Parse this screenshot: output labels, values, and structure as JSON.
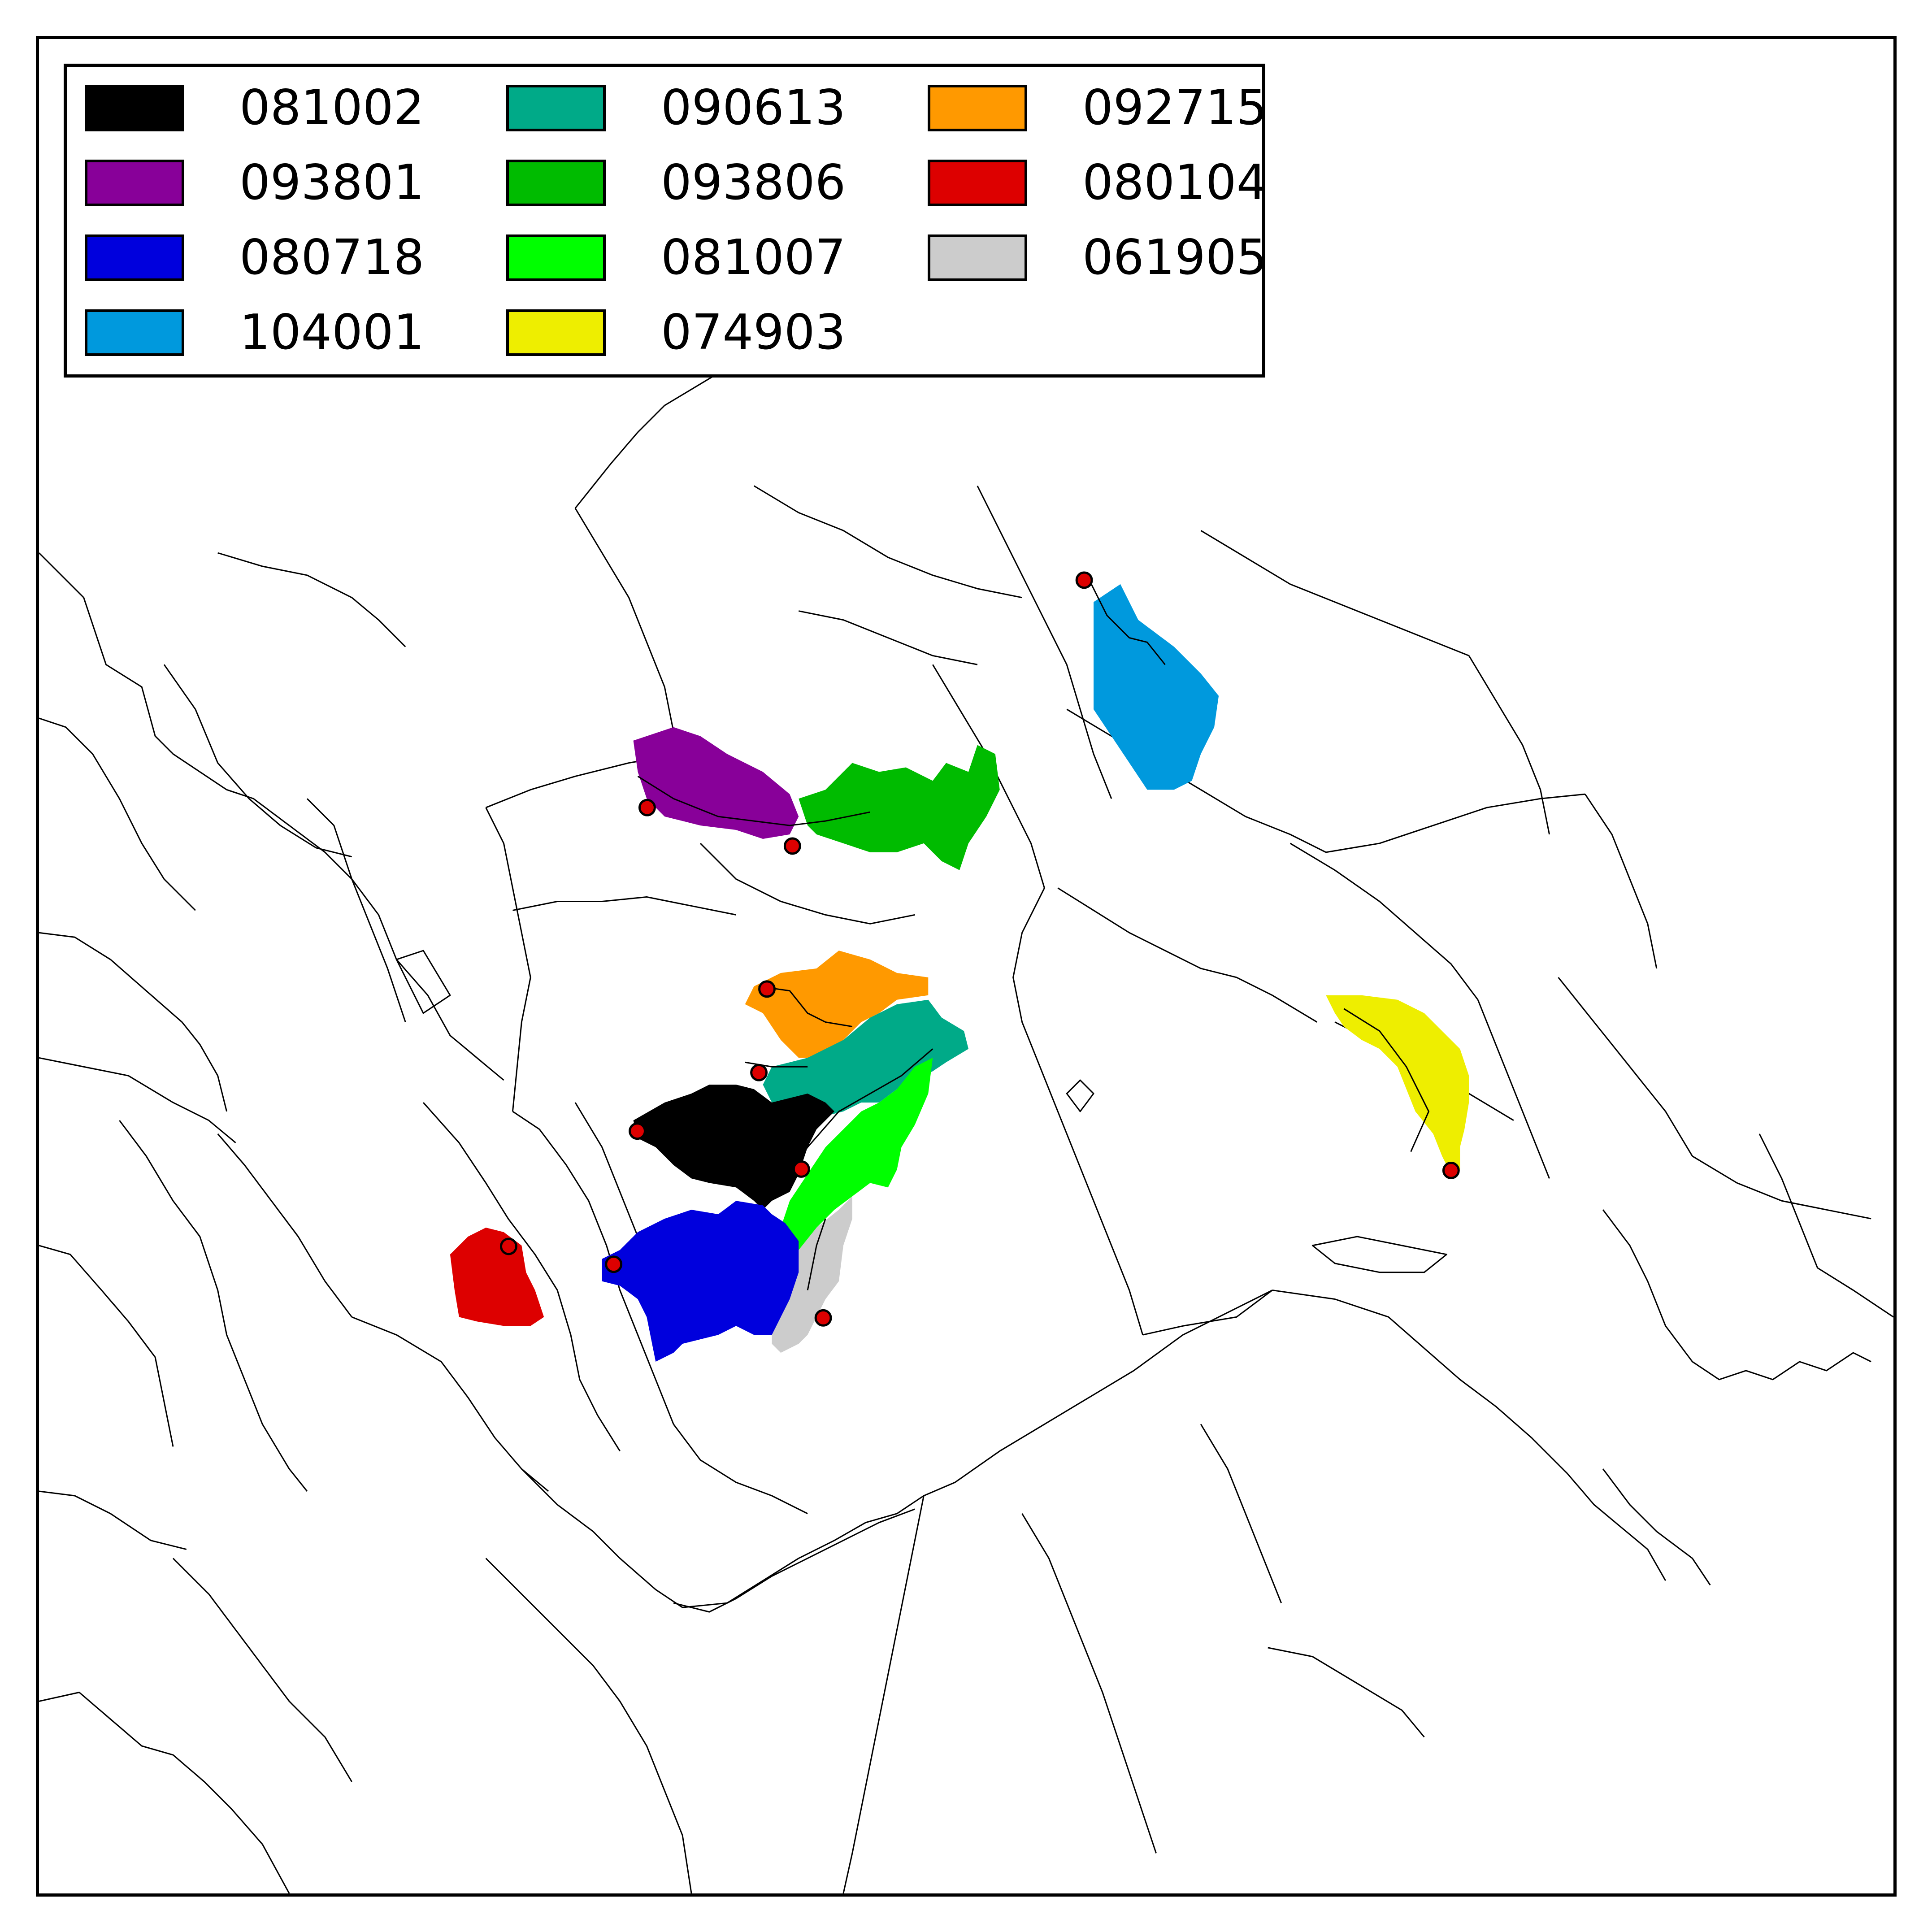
{
  "legend": {
    "items": [
      {
        "code": "081002",
        "color": "#000000"
      },
      {
        "code": "093801",
        "color": "#880099"
      },
      {
        "code": "080718",
        "color": "#0000DD"
      },
      {
        "code": "104001",
        "color": "#0099DD"
      },
      {
        "code": "090613",
        "color": "#00AA88"
      },
      {
        "code": "093806",
        "color": "#00BB00"
      },
      {
        "code": "081007",
        "color": "#00FF00"
      },
      {
        "code": "074903",
        "color": "#EEEE00"
      },
      {
        "code": "092715",
        "color": "#FF9900"
      },
      {
        "code": "080104",
        "color": "#DD0000"
      },
      {
        "code": "061905",
        "color": "#CCCCCC"
      }
    ]
  },
  "gauge_station_color": "#DD0000",
  "basemap": {
    "line_color": "#000000",
    "background": "#FFFFFF"
  }
}
